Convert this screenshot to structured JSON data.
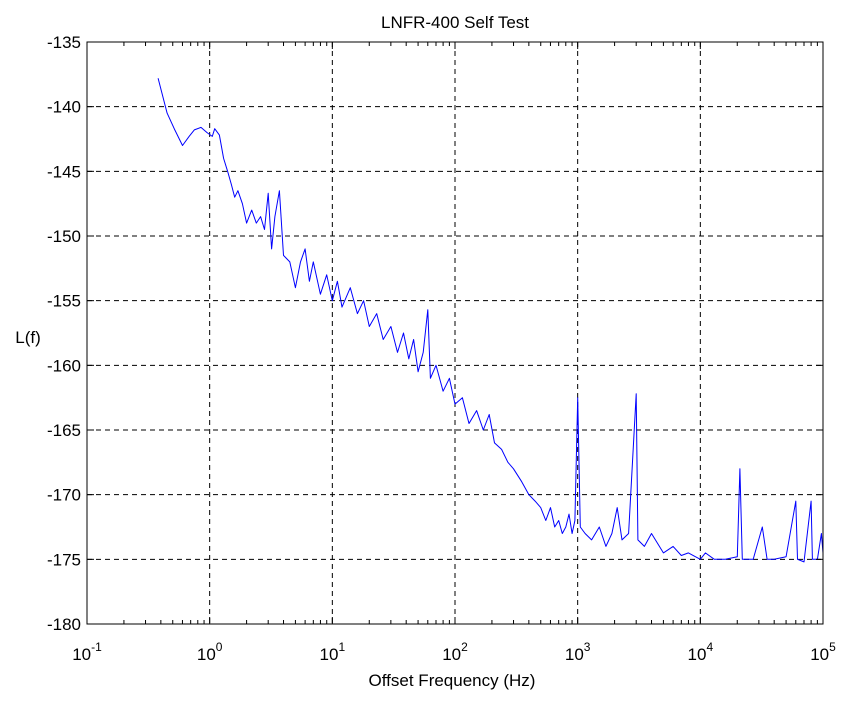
{
  "chart_data": {
    "type": "line",
    "title": "LNFR-400 Self Test",
    "xlabel": "Offset Frequency (Hz)",
    "ylabel": "L(f)",
    "x_scale": "log",
    "xlim": [
      0.1,
      100000
    ],
    "ylim": [
      -180,
      -135
    ],
    "grid": true,
    "x_ticks": [
      {
        "value": 0.1,
        "base": "10",
        "exp": "-1"
      },
      {
        "value": 1,
        "base": "10",
        "exp": "0"
      },
      {
        "value": 10,
        "base": "10",
        "exp": "1"
      },
      {
        "value": 100,
        "base": "10",
        "exp": "2"
      },
      {
        "value": 1000,
        "base": "10",
        "exp": "3"
      },
      {
        "value": 10000,
        "base": "10",
        "exp": "4"
      },
      {
        "value": 100000,
        "base": "10",
        "exp": "5"
      }
    ],
    "y_ticks": [
      -135,
      -140,
      -145,
      -150,
      -155,
      -160,
      -165,
      -170,
      -175,
      -180
    ],
    "y_tick_labels": [
      "-135",
      "-140",
      "-145",
      "-150",
      "-155",
      "-160",
      "-165",
      "-170",
      "-175",
      "-180"
    ],
    "series": [
      {
        "color": "#0000ff",
        "points": [
          [
            0.38,
            -137.8
          ],
          [
            0.45,
            -140.5
          ],
          [
            0.52,
            -141.8
          ],
          [
            0.6,
            -143.0
          ],
          [
            0.68,
            -142.3
          ],
          [
            0.75,
            -141.8
          ],
          [
            0.85,
            -141.6
          ],
          [
            0.95,
            -142.0
          ],
          [
            1.05,
            -142.3
          ],
          [
            1.1,
            -141.7
          ],
          [
            1.2,
            -142.2
          ],
          [
            1.3,
            -144.0
          ],
          [
            1.4,
            -145.0
          ],
          [
            1.5,
            -146.0
          ],
          [
            1.6,
            -147.0
          ],
          [
            1.7,
            -146.5
          ],
          [
            1.85,
            -147.5
          ],
          [
            2.0,
            -149.0
          ],
          [
            2.2,
            -148.0
          ],
          [
            2.4,
            -149.0
          ],
          [
            2.6,
            -148.5
          ],
          [
            2.8,
            -149.5
          ],
          [
            3.0,
            -146.7
          ],
          [
            3.2,
            -151.0
          ],
          [
            3.4,
            -148.5
          ],
          [
            3.7,
            -146.5
          ],
          [
            4.0,
            -151.5
          ],
          [
            4.5,
            -152.0
          ],
          [
            5.0,
            -154.0
          ],
          [
            5.5,
            -152.0
          ],
          [
            6.0,
            -151.0
          ],
          [
            6.5,
            -153.5
          ],
          [
            7.0,
            -152.0
          ],
          [
            8.0,
            -154.5
          ],
          [
            9.0,
            -153.0
          ],
          [
            10,
            -155.0
          ],
          [
            11,
            -153.5
          ],
          [
            12,
            -155.5
          ],
          [
            14,
            -154.0
          ],
          [
            16,
            -156.0
          ],
          [
            18,
            -155.0
          ],
          [
            20,
            -157.0
          ],
          [
            23,
            -156.0
          ],
          [
            26,
            -158.0
          ],
          [
            30,
            -157.0
          ],
          [
            34,
            -159.0
          ],
          [
            38,
            -157.5
          ],
          [
            42,
            -159.5
          ],
          [
            46,
            -158.0
          ],
          [
            50,
            -160.5
          ],
          [
            55,
            -159.0
          ],
          [
            60,
            -155.7
          ],
          [
            63,
            -161.0
          ],
          [
            70,
            -160.0
          ],
          [
            80,
            -162.0
          ],
          [
            90,
            -161.0
          ],
          [
            100,
            -163.0
          ],
          [
            115,
            -162.5
          ],
          [
            130,
            -164.5
          ],
          [
            150,
            -163.5
          ],
          [
            170,
            -165.0
          ],
          [
            190,
            -163.8
          ],
          [
            210,
            -166.0
          ],
          [
            240,
            -166.5
          ],
          [
            270,
            -167.5
          ],
          [
            300,
            -168.0
          ],
          [
            350,
            -169.0
          ],
          [
            400,
            -170.0
          ],
          [
            450,
            -170.5
          ],
          [
            500,
            -171.0
          ],
          [
            550,
            -172.0
          ],
          [
            600,
            -171.0
          ],
          [
            650,
            -172.5
          ],
          [
            700,
            -172.0
          ],
          [
            750,
            -173.0
          ],
          [
            800,
            -172.5
          ],
          [
            850,
            -171.5
          ],
          [
            900,
            -173.0
          ],
          [
            950,
            -172.0
          ],
          [
            1000,
            -162.5
          ],
          [
            1050,
            -172.5
          ],
          [
            1150,
            -173.0
          ],
          [
            1300,
            -173.5
          ],
          [
            1500,
            -172.5
          ],
          [
            1700,
            -174.0
          ],
          [
            1900,
            -173.0
          ],
          [
            2100,
            -171.0
          ],
          [
            2300,
            -173.5
          ],
          [
            2600,
            -173.0
          ],
          [
            3000,
            -162.2
          ],
          [
            3100,
            -173.5
          ],
          [
            3500,
            -174.0
          ],
          [
            4000,
            -173.0
          ],
          [
            5000,
            -174.5
          ],
          [
            6000,
            -174.0
          ],
          [
            7000,
            -174.7
          ],
          [
            8000,
            -174.5
          ],
          [
            10000,
            -175.0
          ],
          [
            11000,
            -174.5
          ],
          [
            13000,
            -175.0
          ],
          [
            16000,
            -175.0
          ],
          [
            20000,
            -174.8
          ],
          [
            21000,
            -168.0
          ],
          [
            22000,
            -175.0
          ],
          [
            27000,
            -175.0
          ],
          [
            32000,
            -172.5
          ],
          [
            35000,
            -175.0
          ],
          [
            40000,
            -175.0
          ],
          [
            50000,
            -174.8
          ],
          [
            60000,
            -170.5
          ],
          [
            62000,
            -175.0
          ],
          [
            70000,
            -175.2
          ],
          [
            80000,
            -170.5
          ],
          [
            82000,
            -175.0
          ],
          [
            90000,
            -175.0
          ],
          [
            97000,
            -173.0
          ],
          [
            100000,
            -174.5
          ]
        ]
      }
    ]
  }
}
